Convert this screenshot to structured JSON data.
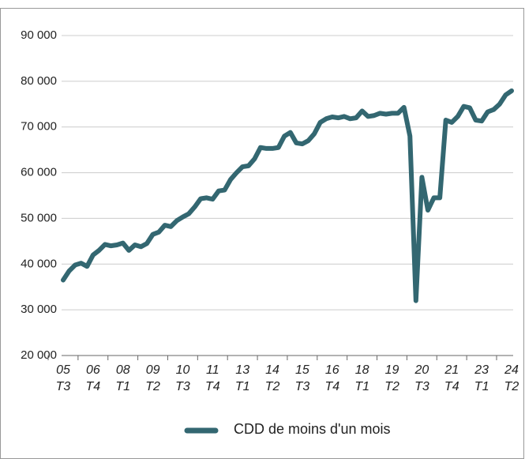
{
  "chart_data": {
    "type": "line",
    "categories": [
      [
        "05",
        "T3"
      ],
      null,
      null,
      null,
      null,
      [
        "06",
        "T4"
      ],
      null,
      null,
      null,
      null,
      [
        "08",
        "T1"
      ],
      null,
      null,
      null,
      null,
      [
        "09",
        "T2"
      ],
      null,
      null,
      null,
      null,
      [
        "10",
        "T3"
      ],
      null,
      null,
      null,
      null,
      [
        "11",
        "T4"
      ],
      null,
      null,
      null,
      null,
      [
        "13",
        "T1"
      ],
      null,
      null,
      null,
      null,
      [
        "14",
        "T2"
      ],
      null,
      null,
      null,
      null,
      [
        "15",
        "T3"
      ],
      null,
      null,
      null,
      null,
      [
        "16",
        "T4"
      ],
      null,
      null,
      null,
      null,
      [
        "18",
        "T1"
      ],
      null,
      null,
      null,
      null,
      [
        "19",
        "T2"
      ],
      null,
      null,
      null,
      null,
      [
        "20",
        "T3"
      ],
      null,
      null,
      null,
      null,
      [
        "21",
        "T4"
      ],
      null,
      null,
      null,
      null,
      [
        "23",
        "T1"
      ],
      null,
      null,
      null,
      null,
      [
        "24",
        "T2"
      ]
    ],
    "series": [
      {
        "name": "CDD de moins d'un mois",
        "color": "#336771",
        "values": [
          36500,
          38500,
          39800,
          40200,
          39500,
          42000,
          43000,
          44300,
          44000,
          44200,
          44600,
          43000,
          44200,
          43800,
          44500,
          46500,
          47000,
          48500,
          48200,
          49500,
          50300,
          51000,
          52500,
          54300,
          54500,
          54200,
          56000,
          56200,
          58500,
          60000,
          61300,
          61500,
          63000,
          65500,
          65300,
          65300,
          65500,
          68000,
          68800,
          66500,
          66300,
          67000,
          68500,
          71000,
          71800,
          72200,
          72000,
          72300,
          71800,
          72000,
          73500,
          72300,
          72500,
          73000,
          72800,
          73000,
          73000,
          74300,
          68000,
          32000,
          59000,
          51800,
          54500,
          54500,
          71500,
          71000,
          72300,
          74500,
          74200,
          71500,
          71300,
          73300,
          73800,
          75000,
          77000,
          77900
        ]
      }
    ],
    "ylim": [
      20000,
      90000
    ],
    "yticks": [
      {
        "value": 20000,
        "label": "20 000"
      },
      {
        "value": 30000,
        "label": "30 000"
      },
      {
        "value": 40000,
        "label": "40 000"
      },
      {
        "value": 50000,
        "label": "50 000"
      },
      {
        "value": 60000,
        "label": "60 000"
      },
      {
        "value": 70000,
        "label": "70 000"
      },
      {
        "value": 80000,
        "label": "80 000"
      },
      {
        "value": 90000,
        "label": "90 000"
      }
    ],
    "grid": true,
    "legend": "bottom"
  }
}
